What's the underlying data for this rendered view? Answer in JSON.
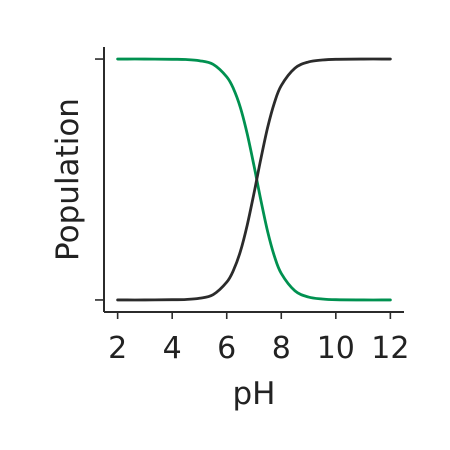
{
  "chart_data": {
    "type": "line",
    "xlabel": "pH",
    "ylabel": "Population",
    "xlim": [
      1.5,
      12.5
    ],
    "ylim": [
      -0.05,
      1.05
    ],
    "xticks": [
      2,
      4,
      6,
      8,
      10,
      12
    ],
    "xtick_labels": [
      "2",
      "4",
      "6",
      "8",
      "10",
      "12"
    ],
    "yticks": [
      0,
      1
    ],
    "ytick_labels": [
      "",
      ""
    ],
    "grid": false,
    "series": [
      {
        "color": "#009150",
        "x": [
          2,
          3,
          4,
          4.5,
          5,
          5.5,
          6,
          6.25,
          6.5,
          6.75,
          7,
          7.1,
          7.25,
          7.5,
          7.75,
          8,
          8.5,
          9,
          9.5,
          10,
          11,
          12
        ],
        "y": [
          1.0,
          1.0,
          0.999,
          0.998,
          0.993,
          0.978,
          0.926,
          0.876,
          0.799,
          0.69,
          0.557,
          0.5,
          0.415,
          0.284,
          0.181,
          0.11,
          0.038,
          0.012,
          0.004,
          0.001,
          0.0,
          0.0
        ]
      },
      {
        "color": "#2b2b2b",
        "x": [
          2,
          3,
          4,
          4.5,
          5,
          5.5,
          6,
          6.25,
          6.5,
          6.75,
          7,
          7.1,
          7.25,
          7.5,
          7.75,
          8,
          8.5,
          9,
          9.5,
          10,
          11,
          12
        ],
        "y": [
          0.0,
          0.0,
          0.001,
          0.002,
          0.007,
          0.022,
          0.074,
          0.124,
          0.201,
          0.31,
          0.443,
          0.5,
          0.585,
          0.716,
          0.819,
          0.89,
          0.962,
          0.988,
          0.996,
          0.999,
          1.0,
          1.0
        ]
      }
    ]
  }
}
